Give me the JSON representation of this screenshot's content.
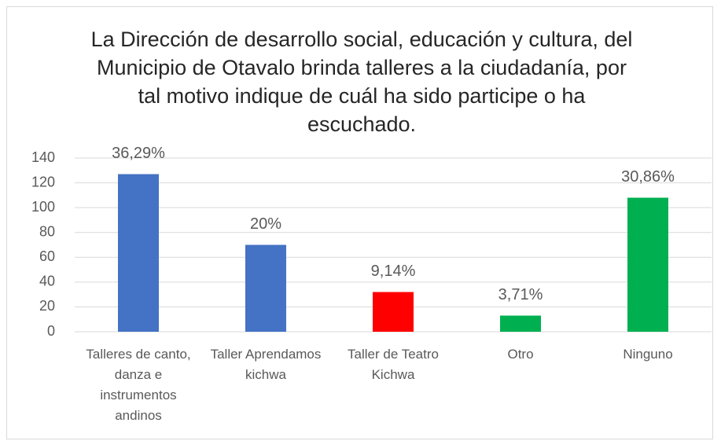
{
  "chart_data": {
    "type": "bar",
    "title": "La Dirección de desarrollo social, educación y cultura, del Municipio de Otavalo brinda talleres a la ciudadanía, por tal motivo indique de cuál ha sido participe o ha escuchado.",
    "categories": [
      "Talleres de canto, danza e instrumentos andinos",
      "Taller Aprendamos kichwa",
      "Taller de Teatro Kichwa",
      "Otro",
      "Ninguno"
    ],
    "values": [
      127,
      70,
      32,
      13,
      108
    ],
    "data_labels": [
      {
        "value": 36.29,
        "label": "36,29%"
      },
      {
        "value": 20,
        "label": "20%"
      },
      {
        "value": 9.14,
        "label": "9,14%"
      },
      {
        "value": 3.71,
        "label": "3,71%"
      },
      {
        "value": 30.86,
        "label": "30,86%"
      }
    ],
    "colors": [
      "#4472c4",
      "#4472c4",
      "#ff0000",
      "#00b050",
      "#00b050"
    ],
    "ylim": [
      0,
      140
    ],
    "yticks": [
      0,
      20,
      40,
      60,
      80,
      100,
      120,
      140
    ],
    "grid": true
  }
}
